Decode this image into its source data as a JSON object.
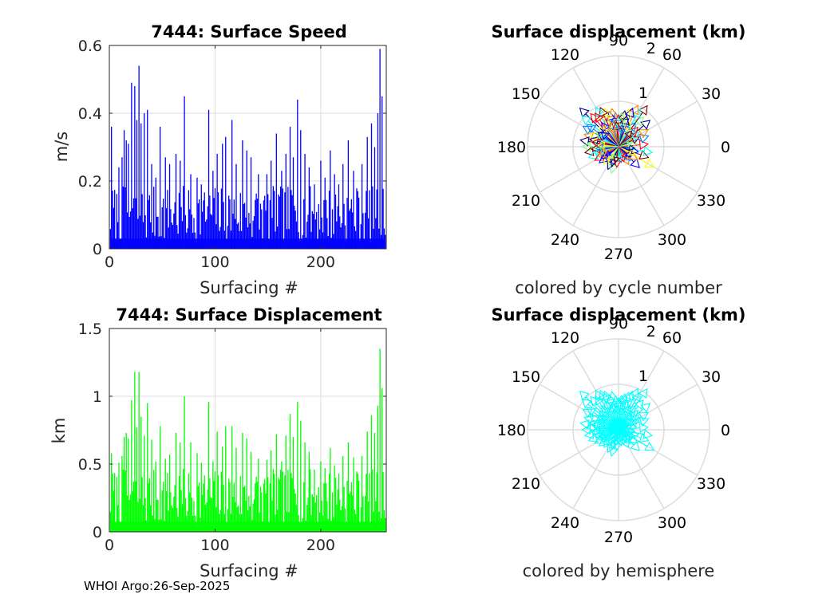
{
  "footer": "WHOI Argo:26-Sep-2025",
  "chart_data": [
    {
      "id": "speed",
      "type": "bar",
      "title": "7444: Surface Speed",
      "xlabel": "Surfacing #",
      "ylabel": "m/s",
      "xlim": [
        0,
        262
      ],
      "ylim": [
        0,
        0.6
      ],
      "xticks": [
        0,
        100,
        200
      ],
      "xtick_labels": [
        "0",
        "100",
        "200"
      ],
      "yticks": [
        0,
        0.2,
        0.4,
        0.6
      ],
      "ytick_labels": [
        "0",
        "0.2",
        "0.4",
        "0.6"
      ],
      "grid": true,
      "color": "#0000ff",
      "peaks": [
        [
          2,
          0.36
        ],
        [
          9,
          0.24
        ],
        [
          12,
          0.27
        ],
        [
          14,
          0.35
        ],
        [
          16,
          0.32
        ],
        [
          18,
          0.31
        ],
        [
          21,
          0.49
        ],
        [
          24,
          0.48
        ],
        [
          26,
          0.38
        ],
        [
          28,
          0.54
        ],
        [
          30,
          0.37
        ],
        [
          33,
          0.4
        ],
        [
          36,
          0.41
        ],
        [
          40,
          0.25
        ],
        [
          44,
          0.21
        ],
        [
          48,
          0.36
        ],
        [
          53,
          0.27
        ],
        [
          57,
          0.25
        ],
        [
          63,
          0.28
        ],
        [
          67,
          0.26
        ],
        [
          71,
          0.45
        ],
        [
          77,
          0.22
        ],
        [
          83,
          0.21
        ],
        [
          87,
          0.19
        ],
        [
          94,
          0.41
        ],
        [
          98,
          0.23
        ],
        [
          102,
          0.28
        ],
        [
          107,
          0.31
        ],
        [
          110,
          0.33
        ],
        [
          116,
          0.38
        ],
        [
          120,
          0.25
        ],
        [
          126,
          0.32
        ],
        [
          130,
          0.29
        ],
        [
          134,
          0.27
        ],
        [
          141,
          0.22
        ],
        [
          149,
          0.22
        ],
        [
          153,
          0.26
        ],
        [
          158,
          0.34
        ],
        [
          163,
          0.23
        ],
        [
          167,
          0.28
        ],
        [
          171,
          0.36
        ],
        [
          174,
          0.27
        ],
        [
          178,
          0.44
        ],
        [
          181,
          0.35
        ],
        [
          185,
          0.28
        ],
        [
          189,
          0.24
        ],
        [
          194,
          0.19
        ],
        [
          200,
          0.26
        ],
        [
          204,
          0.21
        ],
        [
          209,
          0.29
        ],
        [
          213,
          0.22
        ],
        [
          217,
          0.19
        ],
        [
          221,
          0.25
        ],
        [
          226,
          0.32
        ],
        [
          231,
          0.23
        ],
        [
          235,
          0.17
        ],
        [
          239,
          0.25
        ],
        [
          244,
          0.33
        ],
        [
          248,
          0.37
        ],
        [
          251,
          0.3
        ],
        [
          254,
          0.4
        ],
        [
          256,
          0.59
        ],
        [
          258,
          0.45
        ],
        [
          260,
          0.06
        ]
      ]
    },
    {
      "id": "displacement",
      "type": "bar",
      "title": "7444: Surface Displacement",
      "xlabel": "Surfacing #",
      "ylabel": "km",
      "xlim": [
        0,
        262
      ],
      "ylim": [
        0,
        1.5
      ],
      "xticks": [
        0,
        100,
        200
      ],
      "xtick_labels": [
        "0",
        "100",
        "200"
      ],
      "yticks": [
        0,
        0.5,
        1,
        1.5
      ],
      "ytick_labels": [
        "0",
        "0.5",
        "1",
        "1.5"
      ],
      "grid": true,
      "color": "#00ff00",
      "peaks": [
        [
          2,
          0.58
        ],
        [
          9,
          0.51
        ],
        [
          12,
          0.56
        ],
        [
          14,
          0.7
        ],
        [
          16,
          0.73
        ],
        [
          18,
          0.69
        ],
        [
          21,
          0.97
        ],
        [
          24,
          1.18
        ],
        [
          26,
          0.77
        ],
        [
          28,
          1.18
        ],
        [
          30,
          0.85
        ],
        [
          33,
          0.71
        ],
        [
          36,
          0.95
        ],
        [
          40,
          0.68
        ],
        [
          44,
          0.52
        ],
        [
          48,
          0.78
        ],
        [
          53,
          0.54
        ],
        [
          57,
          0.57
        ],
        [
          63,
          0.73
        ],
        [
          67,
          0.66
        ],
        [
          71,
          1.0
        ],
        [
          77,
          0.66
        ],
        [
          83,
          0.58
        ],
        [
          87,
          0.51
        ],
        [
          94,
          0.96
        ],
        [
          98,
          0.52
        ],
        [
          102,
          0.74
        ],
        [
          107,
          0.63
        ],
        [
          110,
          0.78
        ],
        [
          116,
          0.78
        ],
        [
          120,
          0.62
        ],
        [
          126,
          0.73
        ],
        [
          130,
          0.69
        ],
        [
          134,
          0.59
        ],
        [
          141,
          0.54
        ],
        [
          149,
          0.53
        ],
        [
          153,
          0.6
        ],
        [
          158,
          0.72
        ],
        [
          163,
          0.52
        ],
        [
          167,
          0.71
        ],
        [
          171,
          0.87
        ],
        [
          174,
          0.7
        ],
        [
          178,
          0.96
        ],
        [
          181,
          0.82
        ],
        [
          185,
          0.66
        ],
        [
          189,
          0.59
        ],
        [
          194,
          0.46
        ],
        [
          200,
          0.52
        ],
        [
          204,
          0.47
        ],
        [
          209,
          0.62
        ],
        [
          213,
          0.49
        ],
        [
          217,
          0.43
        ],
        [
          221,
          0.56
        ],
        [
          226,
          0.66
        ],
        [
          231,
          0.55
        ],
        [
          235,
          0.43
        ],
        [
          239,
          0.56
        ],
        [
          244,
          0.74
        ],
        [
          248,
          0.86
        ],
        [
          251,
          0.73
        ],
        [
          254,
          0.93
        ],
        [
          256,
          1.35
        ],
        [
          258,
          1.06
        ],
        [
          260,
          0.16
        ]
      ]
    },
    {
      "id": "polar-cycle",
      "type": "polar",
      "title": "Surface displacement (km)",
      "xlabel": "colored by cycle number",
      "rmax": 2,
      "rings": [
        1,
        2
      ],
      "ring_labels": [
        "1",
        "2"
      ],
      "angles": [
        0,
        30,
        60,
        90,
        120,
        150,
        180,
        210,
        240,
        270,
        300,
        330
      ],
      "angle_labels": [
        "0",
        "30",
        "60",
        "90",
        "120",
        "150",
        "180",
        "210",
        "240",
        "270",
        "300",
        "330"
      ],
      "coloring": "cycle",
      "colormap": [
        "#00008f",
        "#0000ff",
        "#0080ff",
        "#00ffff",
        "#80ff80",
        "#ffff00",
        "#ff8000",
        "#ff0000",
        "#800000"
      ],
      "vectors": [
        [
          135,
          1.2
        ],
        [
          140,
          1.05
        ],
        [
          130,
          0.95
        ],
        [
          150,
          0.9
        ],
        [
          160,
          0.8
        ],
        [
          170,
          0.85
        ],
        [
          180,
          0.8
        ],
        [
          190,
          0.75
        ],
        [
          200,
          0.7
        ],
        [
          210,
          0.6
        ],
        [
          220,
          0.55
        ],
        [
          230,
          0.5
        ],
        [
          245,
          0.55
        ],
        [
          255,
          0.6
        ],
        [
          265,
          0.45
        ],
        [
          280,
          0.35
        ],
        [
          300,
          0.45
        ],
        [
          315,
          0.65
        ],
        [
          330,
          0.9
        ],
        [
          340,
          0.7
        ],
        [
          350,
          0.75
        ],
        [
          5,
          0.65
        ],
        [
          20,
          0.7
        ],
        [
          30,
          0.75
        ],
        [
          40,
          0.9
        ],
        [
          50,
          0.85
        ],
        [
          55,
          1.1
        ],
        [
          60,
          0.95
        ],
        [
          65,
          1.0
        ],
        [
          70,
          0.9
        ],
        [
          75,
          0.85
        ],
        [
          80,
          0.8
        ],
        [
          85,
          0.75
        ],
        [
          90,
          0.7
        ],
        [
          95,
          0.75
        ],
        [
          100,
          0.85
        ],
        [
          105,
          0.8
        ],
        [
          110,
          0.9
        ],
        [
          115,
          0.95
        ],
        [
          120,
          1.0
        ],
        [
          125,
          0.9
        ],
        [
          145,
          0.85
        ],
        [
          155,
          0.7
        ],
        [
          165,
          0.65
        ],
        [
          175,
          0.7
        ],
        [
          185,
          0.6
        ],
        [
          195,
          0.55
        ],
        [
          205,
          0.5
        ],
        [
          215,
          0.45
        ],
        [
          235,
          0.4
        ],
        [
          250,
          0.45
        ],
        [
          270,
          0.3
        ],
        [
          290,
          0.35
        ],
        [
          310,
          0.4
        ],
        [
          325,
          0.5
        ],
        [
          345,
          0.45
        ],
        [
          10,
          0.4
        ],
        [
          25,
          0.5
        ],
        [
          35,
          0.55
        ],
        [
          45,
          0.6
        ],
        [
          55,
          0.65
        ],
        [
          65,
          0.6
        ],
        [
          75,
          0.7
        ],
        [
          85,
          0.65
        ],
        [
          95,
          0.55
        ],
        [
          105,
          0.6
        ],
        [
          115,
          0.7
        ],
        [
          125,
          0.65
        ],
        [
          135,
          0.6
        ],
        [
          145,
          0.55
        ],
        [
          155,
          0.5
        ],
        [
          170,
          0.6
        ],
        [
          185,
          0.5
        ],
        [
          200,
          0.45
        ],
        [
          215,
          0.35
        ],
        [
          240,
          0.3
        ],
        [
          260,
          0.35
        ],
        [
          285,
          0.25
        ],
        [
          305,
          0.3
        ],
        [
          320,
          0.35
        ],
        [
          335,
          0.4
        ],
        [
          355,
          0.35
        ],
        [
          15,
          0.3
        ],
        [
          50,
          0.45
        ],
        [
          80,
          0.5
        ],
        [
          110,
          0.55
        ],
        [
          140,
          0.5
        ],
        [
          175,
          0.45
        ]
      ]
    },
    {
      "id": "polar-hemisphere",
      "type": "polar",
      "title": "Surface displacement (km)",
      "xlabel": "colored by hemisphere",
      "rmax": 2,
      "rings": [
        1,
        2
      ],
      "ring_labels": [
        "1",
        "2"
      ],
      "angles": [
        0,
        30,
        60,
        90,
        120,
        150,
        180,
        210,
        240,
        270,
        300,
        330
      ],
      "angle_labels": [
        "0",
        "30",
        "60",
        "90",
        "120",
        "150",
        "180",
        "210",
        "240",
        "270",
        "300",
        "330"
      ],
      "coloring": "hemisphere",
      "color": "#00ffff",
      "vectors": [
        [
          135,
          1.2
        ],
        [
          140,
          1.05
        ],
        [
          130,
          0.95
        ],
        [
          150,
          0.9
        ],
        [
          160,
          0.8
        ],
        [
          170,
          0.85
        ],
        [
          180,
          0.8
        ],
        [
          190,
          0.75
        ],
        [
          200,
          0.7
        ],
        [
          210,
          0.6
        ],
        [
          220,
          0.55
        ],
        [
          230,
          0.5
        ],
        [
          245,
          0.55
        ],
        [
          255,
          0.6
        ],
        [
          265,
          0.45
        ],
        [
          280,
          0.35
        ],
        [
          300,
          0.45
        ],
        [
          315,
          0.65
        ],
        [
          330,
          0.9
        ],
        [
          340,
          0.7
        ],
        [
          350,
          0.75
        ],
        [
          5,
          0.65
        ],
        [
          20,
          0.7
        ],
        [
          30,
          0.75
        ],
        [
          40,
          0.9
        ],
        [
          50,
          0.85
        ],
        [
          55,
          1.1
        ],
        [
          60,
          0.95
        ],
        [
          65,
          1.0
        ],
        [
          70,
          0.9
        ],
        [
          75,
          0.85
        ],
        [
          80,
          0.8
        ],
        [
          85,
          0.75
        ],
        [
          90,
          0.7
        ],
        [
          95,
          0.75
        ],
        [
          100,
          0.85
        ],
        [
          105,
          0.8
        ],
        [
          110,
          0.9
        ],
        [
          115,
          0.95
        ],
        [
          120,
          1.0
        ],
        [
          125,
          0.9
        ],
        [
          145,
          0.85
        ],
        [
          155,
          0.7
        ],
        [
          165,
          0.65
        ],
        [
          175,
          0.7
        ],
        [
          185,
          0.6
        ],
        [
          195,
          0.55
        ],
        [
          205,
          0.5
        ],
        [
          215,
          0.45
        ],
        [
          235,
          0.4
        ],
        [
          250,
          0.45
        ],
        [
          270,
          0.3
        ],
        [
          290,
          0.35
        ],
        [
          310,
          0.4
        ],
        [
          325,
          0.5
        ],
        [
          345,
          0.45
        ],
        [
          10,
          0.4
        ],
        [
          25,
          0.5
        ],
        [
          35,
          0.55
        ],
        [
          45,
          0.6
        ],
        [
          55,
          0.65
        ],
        [
          65,
          0.6
        ],
        [
          75,
          0.7
        ],
        [
          85,
          0.65
        ],
        [
          95,
          0.55
        ],
        [
          105,
          0.6
        ],
        [
          115,
          0.7
        ],
        [
          125,
          0.65
        ],
        [
          135,
          0.6
        ],
        [
          145,
          0.55
        ],
        [
          155,
          0.5
        ],
        [
          170,
          0.6
        ],
        [
          185,
          0.5
        ],
        [
          200,
          0.45
        ],
        [
          215,
          0.35
        ],
        [
          240,
          0.3
        ],
        [
          260,
          0.35
        ],
        [
          285,
          0.25
        ],
        [
          305,
          0.3
        ],
        [
          320,
          0.35
        ],
        [
          335,
          0.4
        ],
        [
          355,
          0.35
        ],
        [
          15,
          0.3
        ],
        [
          50,
          0.45
        ],
        [
          80,
          0.5
        ],
        [
          110,
          0.55
        ],
        [
          140,
          0.5
        ],
        [
          175,
          0.45
        ]
      ]
    }
  ]
}
